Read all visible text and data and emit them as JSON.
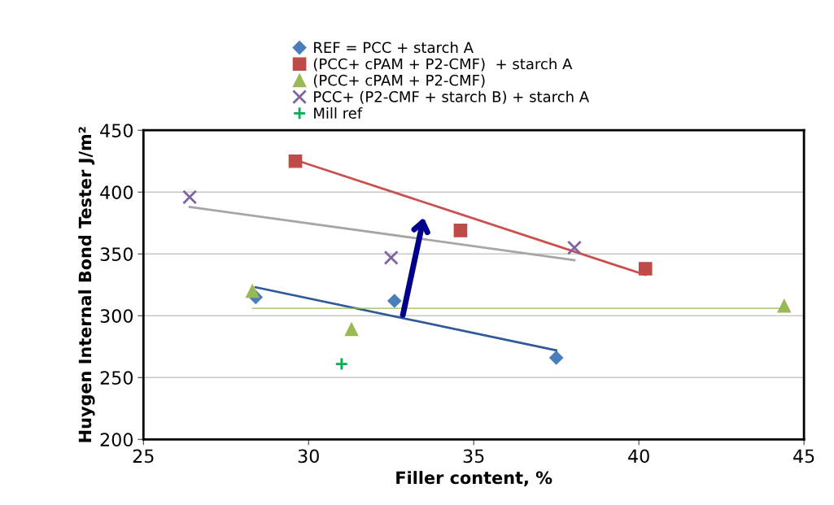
{
  "chart_data": {
    "type": "scatter",
    "xlabel": "Filler content, %",
    "ylabel": "Huygen Internal Bond Tester J/m²",
    "xlim": [
      25,
      45
    ],
    "xticks": [
      25,
      30,
      35,
      40,
      45
    ],
    "ylim": [
      200,
      450
    ],
    "yticks": [
      200,
      250,
      300,
      350,
      400,
      450
    ],
    "grid": "y",
    "legend": "top",
    "series": [
      {
        "name": "REF = PCC + starch A",
        "color": "#4a7ebb",
        "marker": "diamond",
        "x": [
          28.4,
          32.6,
          37.5
        ],
        "values": [
          315,
          312,
          266
        ]
      },
      {
        "name": "(PCC+ cPAM + P2-CMF)  + starch A",
        "color": "#be4b48",
        "marker": "square",
        "x": [
          29.6,
          34.6,
          40.2
        ],
        "values": [
          425,
          369,
          338
        ]
      },
      {
        "name": "(PCC+ cPAM + P2-CMF)",
        "color": "#98b954",
        "marker": "triangle",
        "x": [
          28.3,
          31.3,
          44.4
        ],
        "values": [
          320,
          289,
          308
        ]
      },
      {
        "name": "PCC+ (P2-CMF + starch B) + starch A",
        "color": "#8064a2",
        "marker": "cross",
        "x": [
          26.4,
          32.5,
          38.05
        ],
        "values": [
          396,
          347,
          355
        ]
      },
      {
        "name": "Mill ref",
        "color": "#00b050",
        "marker": "plus",
        "x": [
          31.0
        ],
        "values": [
          261
        ]
      },
      {
        "type": "line",
        "color": "#2f5a97",
        "x": [
          28.4,
          37.5
        ],
        "values": [
          323,
          272
        ]
      },
      {
        "type": "line",
        "color": "#c9504d",
        "x": [
          29.6,
          40.2
        ],
        "values": [
          426,
          333
        ]
      },
      {
        "type": "line",
        "color": "#a6a6a6",
        "x": [
          26.4,
          38.05
        ],
        "values": [
          388,
          345
        ]
      },
      {
        "type": "line",
        "color": "#98b954",
        "x": [
          28.3,
          44.4
        ],
        "values": [
          306,
          306
        ]
      }
    ]
  }
}
